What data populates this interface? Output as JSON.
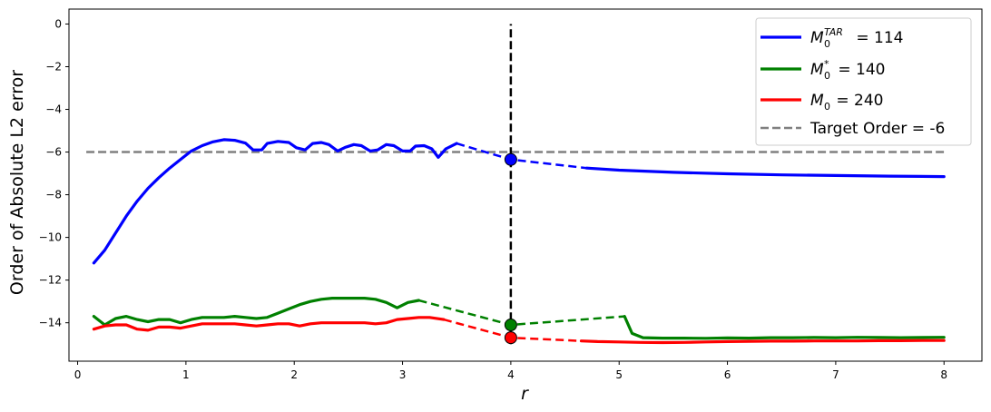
{
  "chart_data": {
    "type": "line",
    "xlabel": "r",
    "ylabel": "Order of Absolute L2 error",
    "xlim": [
      -0.08,
      8.35
    ],
    "ylim": [
      -15.8,
      0.7
    ],
    "xticks": [
      0,
      1,
      2,
      3,
      4,
      5,
      6,
      7,
      8
    ],
    "yticks": [
      0,
      -2,
      -4,
      -6,
      -8,
      -10,
      -12,
      -14
    ],
    "grid": false,
    "legend_position": "top-right",
    "vline": {
      "x": 4,
      "y_range": [
        -15.0,
        0
      ],
      "color": "#000000",
      "style": "dashed"
    },
    "target_order": {
      "value": -6,
      "x_range": [
        0.08,
        8.0
      ],
      "color": "#808080",
      "label": "Target Order = -6"
    },
    "series": [
      {
        "name": "M0TAR = 114",
        "legend_main": "M",
        "legend_sub": "0",
        "legend_sup": "TAR",
        "legend_value": " = 114",
        "color": "#0000ff",
        "marker": {
          "x": 4,
          "y": -6.35
        },
        "solid_left": [
          [
            0.15,
            -11.2
          ],
          [
            0.25,
            -10.6
          ],
          [
            0.35,
            -9.8
          ],
          [
            0.45,
            -9.0
          ],
          [
            0.55,
            -8.3
          ],
          [
            0.65,
            -7.7
          ],
          [
            0.75,
            -7.2
          ],
          [
            0.85,
            -6.75
          ],
          [
            0.95,
            -6.35
          ],
          [
            1.05,
            -5.95
          ],
          [
            1.15,
            -5.7
          ],
          [
            1.25,
            -5.52
          ],
          [
            1.35,
            -5.42
          ],
          [
            1.45,
            -5.45
          ],
          [
            1.55,
            -5.58
          ],
          [
            1.62,
            -5.9
          ],
          [
            1.7,
            -5.9
          ],
          [
            1.75,
            -5.6
          ],
          [
            1.85,
            -5.5
          ],
          [
            1.95,
            -5.55
          ],
          [
            2.02,
            -5.8
          ],
          [
            2.1,
            -5.9
          ],
          [
            2.17,
            -5.6
          ],
          [
            2.25,
            -5.55
          ],
          [
            2.32,
            -5.65
          ],
          [
            2.4,
            -5.95
          ],
          [
            2.47,
            -5.78
          ],
          [
            2.55,
            -5.65
          ],
          [
            2.62,
            -5.7
          ],
          [
            2.7,
            -5.95
          ],
          [
            2.77,
            -5.9
          ],
          [
            2.85,
            -5.65
          ],
          [
            2.92,
            -5.7
          ],
          [
            3.0,
            -5.95
          ],
          [
            3.07,
            -5.95
          ],
          [
            3.12,
            -5.72
          ],
          [
            3.2,
            -5.7
          ],
          [
            3.27,
            -5.85
          ],
          [
            3.33,
            -6.25
          ],
          [
            3.4,
            -5.85
          ],
          [
            3.5,
            -5.6
          ]
        ],
        "dashed": [
          [
            3.5,
            -5.6
          ],
          [
            4.0,
            -6.35
          ],
          [
            4.7,
            -6.75
          ]
        ],
        "solid_right": [
          [
            4.7,
            -6.75
          ],
          [
            5.0,
            -6.85
          ],
          [
            5.5,
            -6.95
          ],
          [
            6.0,
            -7.02
          ],
          [
            6.5,
            -7.07
          ],
          [
            7.0,
            -7.1
          ],
          [
            7.5,
            -7.13
          ],
          [
            8.0,
            -7.15
          ]
        ]
      },
      {
        "name": "M0* = 140",
        "legend_main": "M",
        "legend_sub": "0",
        "legend_sup": "*",
        "legend_value": " = 140",
        "color": "#008000",
        "marker": {
          "x": 4,
          "y": -14.1
        },
        "solid_left": [
          [
            0.15,
            -13.7
          ],
          [
            0.25,
            -14.1
          ],
          [
            0.35,
            -13.8
          ],
          [
            0.45,
            -13.7
          ],
          [
            0.55,
            -13.85
          ],
          [
            0.65,
            -13.95
          ],
          [
            0.75,
            -13.85
          ],
          [
            0.85,
            -13.85
          ],
          [
            0.95,
            -14.0
          ],
          [
            1.05,
            -13.85
          ],
          [
            1.15,
            -13.75
          ],
          [
            1.25,
            -13.75
          ],
          [
            1.35,
            -13.75
          ],
          [
            1.45,
            -13.7
          ],
          [
            1.55,
            -13.75
          ],
          [
            1.65,
            -13.8
          ],
          [
            1.75,
            -13.75
          ],
          [
            1.85,
            -13.55
          ],
          [
            1.95,
            -13.35
          ],
          [
            2.05,
            -13.15
          ],
          [
            2.15,
            -13.0
          ],
          [
            2.25,
            -12.9
          ],
          [
            2.35,
            -12.85
          ],
          [
            2.45,
            -12.85
          ],
          [
            2.55,
            -12.85
          ],
          [
            2.65,
            -12.85
          ],
          [
            2.75,
            -12.9
          ],
          [
            2.85,
            -13.05
          ],
          [
            2.95,
            -13.3
          ],
          [
            3.05,
            -13.05
          ],
          [
            3.15,
            -12.95
          ]
        ],
        "dashed": [
          [
            3.15,
            -12.95
          ],
          [
            4.0,
            -14.1
          ],
          [
            5.05,
            -13.7
          ]
        ],
        "solid_right": [
          [
            5.05,
            -13.7
          ],
          [
            5.12,
            -14.5
          ],
          [
            5.22,
            -14.7
          ],
          [
            5.4,
            -14.72
          ],
          [
            5.6,
            -14.72
          ],
          [
            5.8,
            -14.73
          ],
          [
            6.0,
            -14.71
          ],
          [
            6.2,
            -14.72
          ],
          [
            6.4,
            -14.7
          ],
          [
            6.6,
            -14.7
          ],
          [
            6.8,
            -14.69
          ],
          [
            7.0,
            -14.7
          ],
          [
            7.2,
            -14.68
          ],
          [
            7.4,
            -14.69
          ],
          [
            7.6,
            -14.7
          ],
          [
            7.8,
            -14.69
          ],
          [
            8.0,
            -14.68
          ]
        ]
      },
      {
        "name": "M0 = 240",
        "legend_main": "M",
        "legend_sub": "0",
        "legend_sup": "",
        "legend_value": " = 240",
        "color": "#ff0000",
        "marker": {
          "x": 4,
          "y": -14.7
        },
        "solid_left": [
          [
            0.15,
            -14.3
          ],
          [
            0.25,
            -14.15
          ],
          [
            0.35,
            -14.1
          ],
          [
            0.45,
            -14.1
          ],
          [
            0.55,
            -14.3
          ],
          [
            0.65,
            -14.35
          ],
          [
            0.75,
            -14.2
          ],
          [
            0.85,
            -14.2
          ],
          [
            0.95,
            -14.25
          ],
          [
            1.05,
            -14.15
          ],
          [
            1.15,
            -14.05
          ],
          [
            1.25,
            -14.05
          ],
          [
            1.35,
            -14.05
          ],
          [
            1.45,
            -14.05
          ],
          [
            1.55,
            -14.1
          ],
          [
            1.65,
            -14.15
          ],
          [
            1.75,
            -14.1
          ],
          [
            1.85,
            -14.05
          ],
          [
            1.95,
            -14.05
          ],
          [
            2.05,
            -14.15
          ],
          [
            2.15,
            -14.05
          ],
          [
            2.25,
            -14.0
          ],
          [
            2.35,
            -14.0
          ],
          [
            2.45,
            -14.0
          ],
          [
            2.55,
            -14.0
          ],
          [
            2.65,
            -14.0
          ],
          [
            2.75,
            -14.05
          ],
          [
            2.85,
            -14.0
          ],
          [
            2.95,
            -13.85
          ],
          [
            3.05,
            -13.8
          ],
          [
            3.15,
            -13.75
          ],
          [
            3.25,
            -13.75
          ],
          [
            3.38,
            -13.85
          ]
        ],
        "dashed": [
          [
            3.38,
            -13.85
          ],
          [
            4.0,
            -14.7
          ],
          [
            4.65,
            -14.85
          ]
        ],
        "solid_right": [
          [
            4.65,
            -14.85
          ],
          [
            4.8,
            -14.88
          ],
          [
            5.0,
            -14.9
          ],
          [
            5.2,
            -14.92
          ],
          [
            5.4,
            -14.93
          ],
          [
            5.6,
            -14.92
          ],
          [
            5.8,
            -14.9
          ],
          [
            6.0,
            -14.88
          ],
          [
            6.2,
            -14.87
          ],
          [
            6.4,
            -14.86
          ],
          [
            6.6,
            -14.86
          ],
          [
            6.8,
            -14.85
          ],
          [
            7.0,
            -14.85
          ],
          [
            7.2,
            -14.85
          ],
          [
            7.4,
            -14.84
          ],
          [
            7.6,
            -14.84
          ],
          [
            7.8,
            -14.83
          ],
          [
            8.0,
            -14.83
          ]
        ]
      }
    ]
  }
}
